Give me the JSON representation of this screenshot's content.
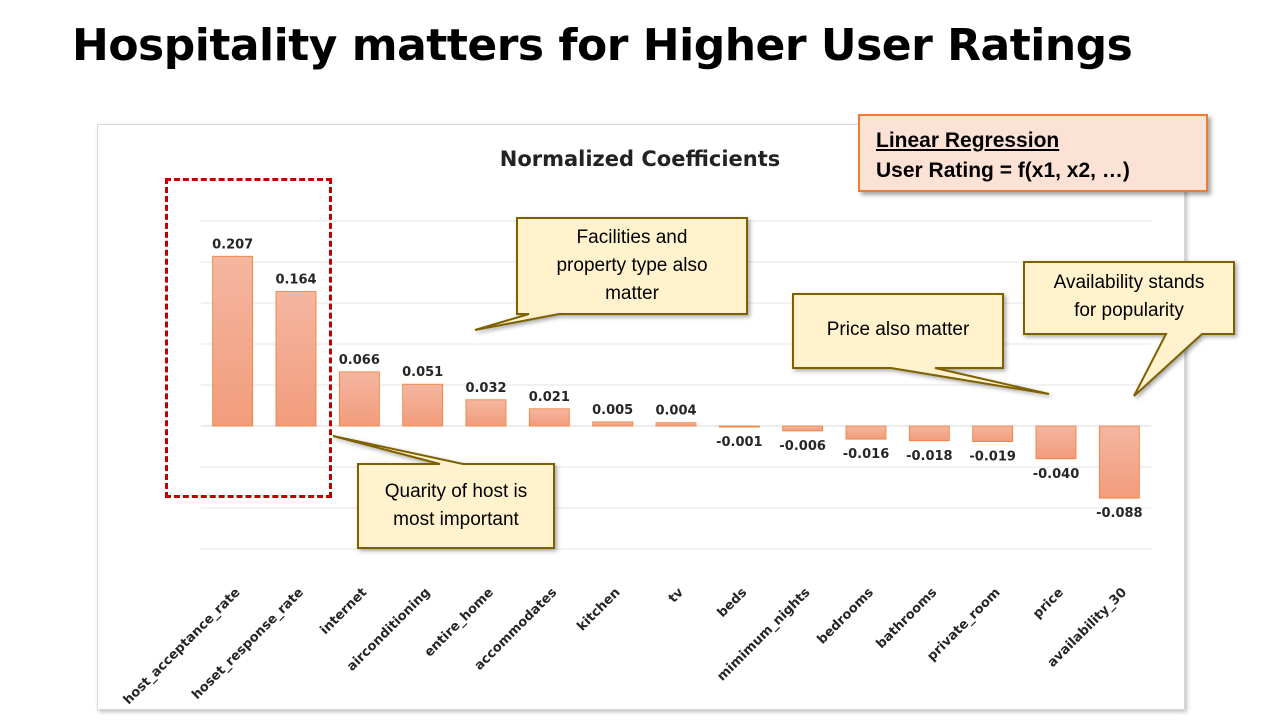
{
  "slide": {
    "title": "Hospitality matters for Higher User Ratings"
  },
  "regression_box": {
    "line1": "Linear Regression",
    "line2": "User Rating = f(x1, x2, …)"
  },
  "callouts": {
    "host": "Quarity of host is\nmost important",
    "facilities": "Facilities and\nproperty type also\nmatter",
    "price": "Price also matter",
    "availability": "Availability stands\nfor popularity"
  },
  "colors": {
    "bar_top": "#f4b6a0",
    "bar_bottom": "#f29c7c",
    "bar_stroke": "#ed7d31",
    "callout_fill": "#fff2cc",
    "callout_stroke": "#7f6000",
    "highlight": "#c00000"
  },
  "chart_data": {
    "type": "bar",
    "title": "Normalized Coefficients",
    "categories": [
      "host_acceptance_rate",
      "hoset_response_rate",
      "internet",
      "airconditioning",
      "entire_home",
      "accommodates",
      "kitchen",
      "tv",
      "beds",
      "mimimum_nights",
      "bedrooms",
      "bathrooms",
      "private_room",
      "price",
      "availability_30"
    ],
    "values": [
      0.207,
      0.164,
      0.066,
      0.051,
      0.032,
      0.021,
      0.005,
      0.004,
      -0.001,
      -0.006,
      -0.016,
      -0.018,
      -0.019,
      -0.04,
      -0.088
    ],
    "labels": [
      "0.207",
      "0.164",
      "0.066",
      "0.051",
      "0.032",
      "0.021",
      "0.005",
      "0.004",
      "-0.001",
      "-0.006",
      "-0.016",
      "-0.018",
      "-0.019",
      "-0.040",
      "-0.088"
    ],
    "ylim": [
      -0.15,
      0.25
    ],
    "grid_step": 0.05,
    "grid": true,
    "xlabel": "",
    "ylabel": ""
  }
}
